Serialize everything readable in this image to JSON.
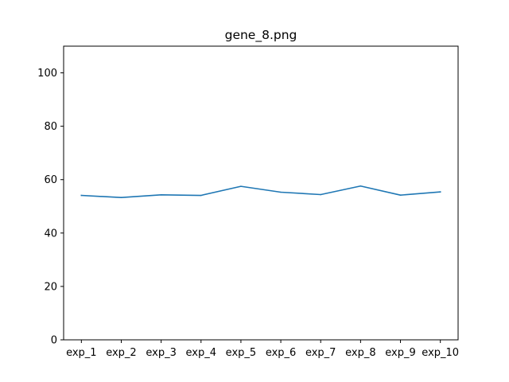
{
  "chart_data": {
    "type": "line",
    "title": "gene_8.png",
    "xlabel": "",
    "ylabel": "",
    "categories": [
      "exp_1",
      "exp_2",
      "exp_3",
      "exp_4",
      "exp_5",
      "exp_6",
      "exp_7",
      "exp_8",
      "exp_9",
      "exp_10"
    ],
    "series": [
      {
        "values": [
          54.1,
          53.3,
          54.3,
          54.1,
          57.5,
          55.3,
          54.4,
          57.6,
          54.2,
          55.4
        ],
        "color": "#1f77b4"
      }
    ],
    "ylim": [
      0,
      110
    ],
    "yticks": [
      0,
      20,
      40,
      60,
      80,
      100
    ],
    "grid": false,
    "legend": "none"
  }
}
